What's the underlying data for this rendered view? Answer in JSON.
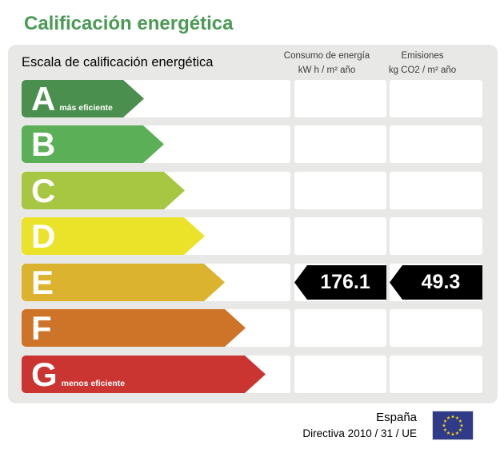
{
  "title": "Calificación energética",
  "panel": {
    "scale_title": "Escala de calificación energética",
    "columns": [
      {
        "title": "Consumo de energía",
        "unit": "kW h / m² año"
      },
      {
        "title": "Emisiones",
        "unit": "kg CO2 / m² año"
      }
    ]
  },
  "scale": {
    "rows": [
      {
        "letter": "A",
        "note": "más eficiente",
        "color": "#4b8f4e"
      },
      {
        "letter": "B",
        "note": "",
        "color": "#5bb057"
      },
      {
        "letter": "C",
        "note": "",
        "color": "#a7c642"
      },
      {
        "letter": "D",
        "note": "",
        "color": "#ebe32a"
      },
      {
        "letter": "E",
        "note": "",
        "color": "#dcb32e"
      },
      {
        "letter": "F",
        "note": "",
        "color": "#ce7429"
      },
      {
        "letter": "G",
        "note": "menos eficiente",
        "color": "#ca3531"
      }
    ]
  },
  "rating": {
    "letter": "E",
    "consumo": "176.1",
    "emisiones": "49.3",
    "badge_color": "#000000"
  },
  "footer": {
    "country": "España",
    "directive": "Directiva 2010 / 31 / UE"
  },
  "colors": {
    "title_green": "#4a9a55",
    "panel_bg": "#e8e8e6",
    "header_text": "#3c3c3c",
    "flag_blue": "#2f3a88",
    "flag_star_yellow": "#f3d610"
  },
  "chart_data": {
    "type": "bar",
    "title": "Calificación energética",
    "subtitle": "Escala de calificación energética",
    "categories": [
      "A",
      "B",
      "C",
      "D",
      "E",
      "F",
      "G"
    ],
    "category_notes": {
      "A": "más eficiente",
      "G": "menos eficiente"
    },
    "assigned_rating": "E",
    "series": [
      {
        "name": "Consumo de energía (kW h / m² año)",
        "values": [
          null,
          null,
          null,
          null,
          176.1,
          null,
          null
        ]
      },
      {
        "name": "Emisiones (kg CO2 / m² año)",
        "values": [
          null,
          null,
          null,
          null,
          49.3,
          null,
          null
        ]
      }
    ],
    "bar_colors": [
      "#4b8f4e",
      "#5bb057",
      "#a7c642",
      "#ebe32a",
      "#dcb32e",
      "#ce7429",
      "#ca3531"
    ],
    "legend_position": "none",
    "grid": false
  }
}
